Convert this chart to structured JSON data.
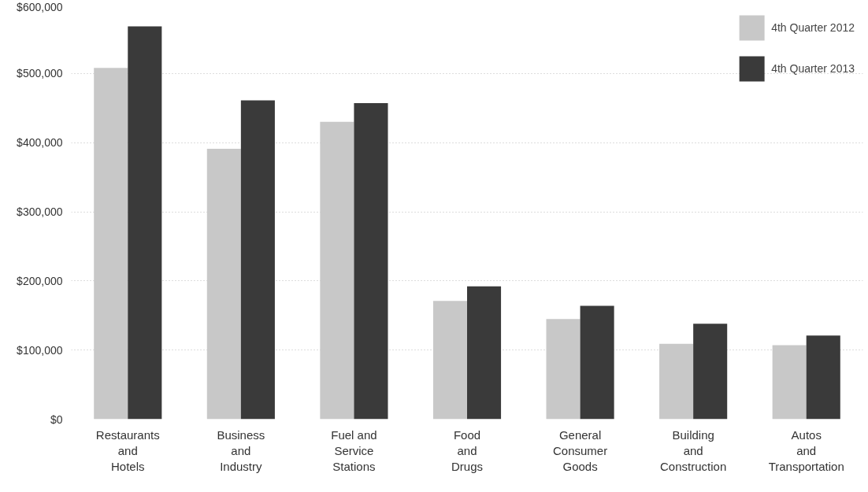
{
  "chart_data": {
    "type": "bar",
    "categories": [
      "Restaurants\nand\nHotels",
      "Business\nand\nIndustry",
      "Fuel and\nService\nStations",
      "Food\nand\nDrugs",
      "General\nConsumer\nGoods",
      "Building\nand\nConstruction",
      "Autos\nand\nTransportation"
    ],
    "series": [
      {
        "name": "4th Quarter 2012",
        "color": "#c8c8c8",
        "values": [
          508000,
          391000,
          430000,
          171000,
          145000,
          109000,
          107000
        ]
      },
      {
        "name": "4th Quarter 2013",
        "color": "#3a3a3a",
        "values": [
          568000,
          461000,
          457000,
          192000,
          164000,
          138000,
          121000
        ]
      }
    ],
    "ylim": [
      0,
      600000
    ],
    "yticks": [
      {
        "value": 0,
        "label": "$0"
      },
      {
        "value": 100000,
        "label": "$100,000"
      },
      {
        "value": 200000,
        "label": "$200,000"
      },
      {
        "value": 300000,
        "label": "$300,000"
      },
      {
        "value": 400000,
        "label": "$400,000"
      },
      {
        "value": 500000,
        "label": "$500,000"
      },
      {
        "value": 600000,
        "label": "$600,000"
      }
    ],
    "grid": "y",
    "legend": "top right"
  }
}
